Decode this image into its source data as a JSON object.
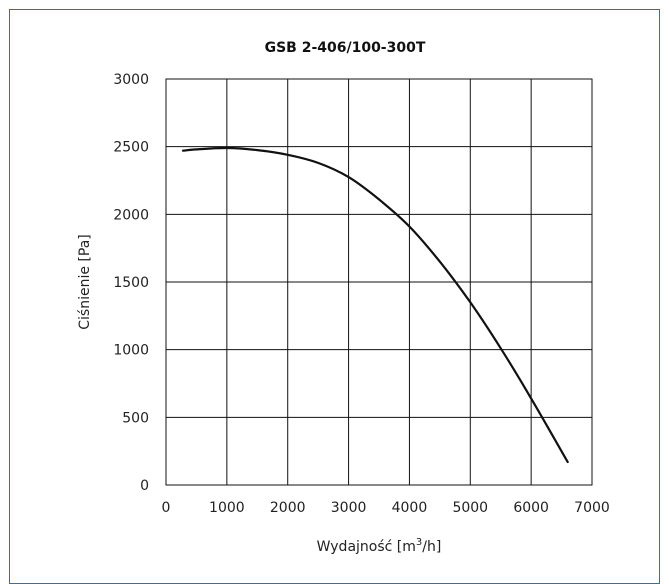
{
  "chart_data": {
    "type": "line",
    "title": "GSB 2-406/100-300T",
    "xlabel": "Wydajność [m³/h]",
    "ylabel": "Ciśnienie [Pa]",
    "xlim": [
      0,
      7000
    ],
    "ylim": [
      0,
      3000
    ],
    "xticks": [
      0,
      1000,
      2000,
      3000,
      4000,
      5000,
      6000,
      7000
    ],
    "yticks": [
      0,
      500,
      1000,
      1500,
      2000,
      2500,
      3000
    ],
    "grid": true,
    "series": [
      {
        "x": [
          280,
          500,
          1000,
          1500,
          2000,
          2500,
          3000,
          3500,
          4000,
          4500,
          5000,
          5500,
          6000,
          6600
        ],
        "y": [
          2470,
          2480,
          2490,
          2475,
          2440,
          2380,
          2275,
          2110,
          1910,
          1650,
          1350,
          1010,
          640,
          170
        ]
      }
    ],
    "colors": {
      "line": "#111111",
      "frame": "#2f6fb5"
    }
  }
}
